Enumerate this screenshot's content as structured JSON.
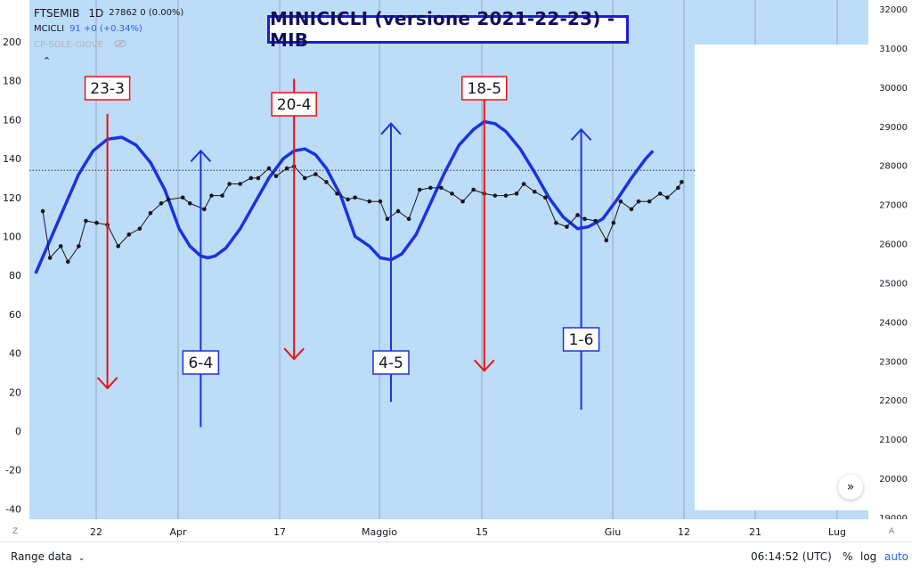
{
  "title": "MINICICLI (versione 2021-22-23) - MIB",
  "legend": {
    "symbol": "FTSEMIB",
    "interval": "1D",
    "price_info": "27862 0 (0.00%)",
    "indicator_name": "MCICLI",
    "indicator_value": "91 +0 (+0.34%)",
    "hidden_indicator": "CP-SOLE-GIOVE",
    "hidden_icon": "eye-crossed-icon",
    "collapse_icon": "chevron-up-icon"
  },
  "colors": {
    "background": "#bcdcf7",
    "cycle_line": "#1c32e0",
    "red_arrow": "#ee1111",
    "blue_arrow": "#1c32e0",
    "price_line": "#131722",
    "grid": "#8a9aaa"
  },
  "chart_data": {
    "type": "line",
    "left_axis": {
      "ylim": [
        -45,
        210
      ],
      "ticks": [
        -40,
        -20,
        0,
        20,
        40,
        60,
        80,
        100,
        120,
        140,
        160,
        180,
        200
      ]
    },
    "right_axis": {
      "ylim": [
        18900,
        32150
      ],
      "ticks": [
        19000,
        20000,
        21000,
        22000,
        23000,
        24000,
        25000,
        26000,
        27000,
        28000,
        29000,
        30000,
        31000,
        32000
      ]
    },
    "x_ticks": [
      "22",
      "Apr",
      "17",
      "Maggio",
      "15",
      "Giu",
      "12",
      "21",
      "Lug"
    ],
    "series": [
      {
        "points": [
          [
            0,
            81
          ],
          [
            4,
            98
          ],
          [
            8,
            115
          ],
          [
            12,
            132
          ],
          [
            16,
            144
          ],
          [
            20,
            150
          ],
          [
            24,
            151
          ],
          [
            28,
            147
          ],
          [
            32,
            138
          ],
          [
            36,
            124
          ],
          [
            40,
            104
          ],
          [
            43,
            95
          ],
          [
            46,
            90
          ],
          [
            48,
            89
          ],
          [
            50,
            90
          ],
          [
            53,
            94
          ],
          [
            57,
            104
          ],
          [
            61,
            117
          ],
          [
            65,
            130
          ],
          [
            69,
            140
          ],
          [
            72,
            144
          ],
          [
            75,
            145
          ],
          [
            78,
            142
          ],
          [
            81,
            135
          ],
          [
            85,
            121
          ],
          [
            89,
            100
          ],
          [
            93,
            95
          ],
          [
            96,
            89
          ],
          [
            99,
            88
          ],
          [
            102,
            91
          ],
          [
            106,
            101
          ],
          [
            110,
            117
          ],
          [
            114,
            133
          ],
          [
            118,
            147
          ],
          [
            122,
            155
          ],
          [
            125,
            159
          ],
          [
            128,
            158
          ],
          [
            131,
            154
          ],
          [
            135,
            145
          ],
          [
            139,
            133
          ],
          [
            143,
            120
          ],
          [
            147,
            110
          ],
          [
            151,
            104
          ],
          [
            154,
            105
          ],
          [
            158,
            109
          ],
          [
            162,
            119
          ],
          [
            166,
            130
          ],
          [
            170,
            140
          ],
          [
            172,
            144
          ]
        ]
      },
      {
        "points": [
          [
            2,
            113
          ],
          [
            4,
            89
          ],
          [
            7,
            95
          ],
          [
            9,
            87
          ],
          [
            12,
            95
          ],
          [
            14,
            108
          ],
          [
            17,
            107
          ],
          [
            20,
            106
          ],
          [
            23,
            95
          ],
          [
            26,
            101
          ],
          [
            29,
            104
          ],
          [
            32,
            112
          ],
          [
            35,
            117
          ],
          [
            37,
            119
          ],
          [
            41,
            120
          ],
          [
            43,
            117
          ],
          [
            47,
            114
          ],
          [
            49,
            121
          ],
          [
            52,
            121
          ],
          [
            54,
            127
          ],
          [
            57,
            127
          ],
          [
            60,
            130
          ],
          [
            62,
            130
          ],
          [
            65,
            135
          ],
          [
            67,
            131
          ],
          [
            70,
            135
          ],
          [
            72,
            136
          ],
          [
            75,
            130
          ],
          [
            78,
            132
          ],
          [
            81,
            128
          ],
          [
            84,
            122
          ],
          [
            87,
            119
          ],
          [
            89,
            120
          ],
          [
            93,
            118
          ],
          [
            96,
            118
          ],
          [
            98,
            109
          ],
          [
            101,
            113
          ],
          [
            104,
            109
          ],
          [
            107,
            124
          ],
          [
            110,
            125
          ],
          [
            113,
            125
          ],
          [
            116,
            122
          ],
          [
            119,
            118
          ],
          [
            122,
            124
          ],
          [
            125,
            122
          ],
          [
            128,
            121
          ],
          [
            131,
            121
          ],
          [
            134,
            122
          ],
          [
            136,
            127
          ],
          [
            139,
            123
          ],
          [
            142,
            120
          ],
          [
            145,
            107
          ],
          [
            148,
            105
          ],
          [
            151,
            111
          ],
          [
            153,
            109
          ],
          [
            156,
            108
          ],
          [
            159,
            98
          ],
          [
            161,
            107
          ],
          [
            163,
            118
          ],
          [
            166,
            114
          ],
          [
            168,
            118
          ],
          [
            171,
            118
          ],
          [
            174,
            122
          ],
          [
            176,
            120
          ],
          [
            179,
            125
          ],
          [
            180,
            128
          ]
        ]
      }
    ],
    "vertical_markers": [
      {
        "label": "23-3",
        "x": 20,
        "direction": "down",
        "color": "red",
        "top": 163,
        "bottom": 22
      },
      {
        "label": "6-4",
        "x": 46,
        "direction": "up",
        "color": "blue",
        "top": 144,
        "bottom": 2
      },
      {
        "label": "20-4",
        "x": 72,
        "direction": "down",
        "color": "red",
        "top": 181,
        "bottom": 37
      },
      {
        "label": "4-5",
        "x": 99,
        "direction": "up",
        "color": "blue",
        "top": 158,
        "bottom": 15
      },
      {
        "label": "18-5",
        "x": 125,
        "direction": "down",
        "color": "red",
        "top": 182,
        "bottom": 31
      },
      {
        "label": "1-6",
        "x": 152,
        "direction": "up",
        "color": "blue",
        "top": 155,
        "bottom": 11
      }
    ],
    "reference_line": {
      "value": 134
    }
  },
  "bottom_bar": {
    "range_label": "Range data",
    "range_icon": "chevron-down-icon",
    "clock": "06:14:52 (UTC)",
    "percent": "%",
    "log": "log",
    "auto": "auto"
  },
  "corners": {
    "left": "Z",
    "right": "A"
  }
}
